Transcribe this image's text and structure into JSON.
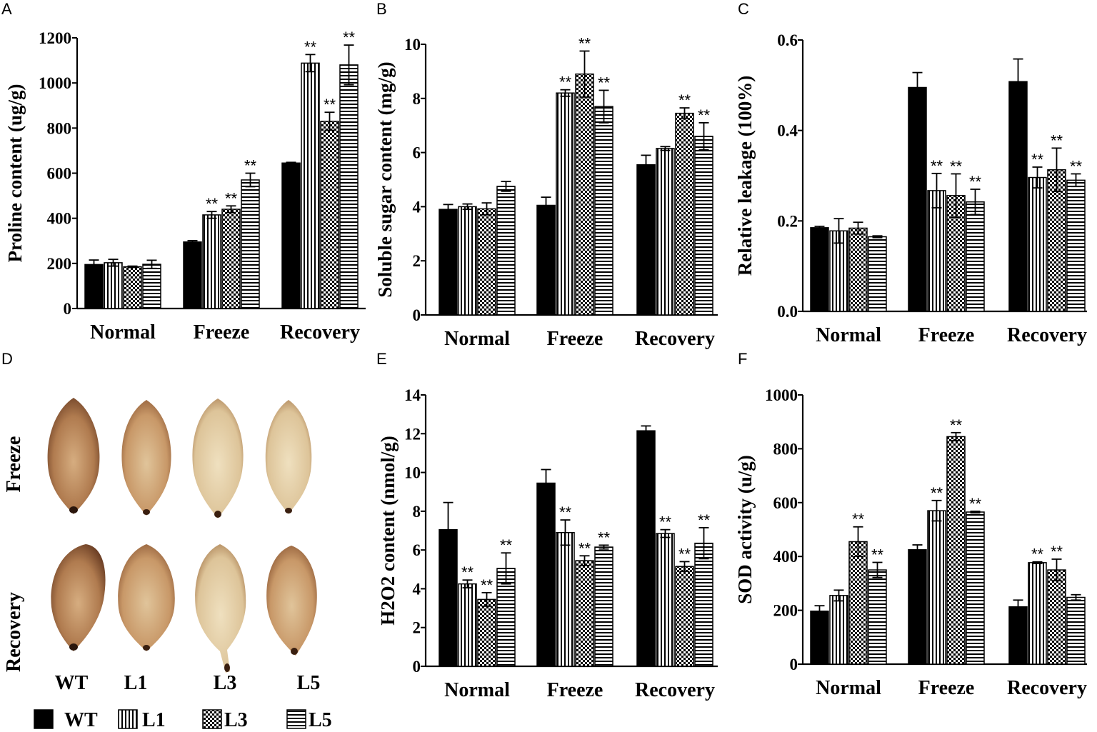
{
  "chart_data": [
    {
      "panel": "A",
      "type": "bar",
      "ylabel": "Proline content (ug/g)",
      "categories": [
        "Normal",
        "Freeze",
        "Recovery"
      ],
      "ylim": [
        0,
        1200
      ],
      "yticks": [
        "0",
        "200",
        "400",
        "600",
        "800",
        "1000",
        "1200"
      ],
      "ystep": 200,
      "series": [
        {
          "name": "WT",
          "values": [
            195,
            295,
            645
          ],
          "errors": [
            20,
            6,
            3
          ],
          "sig": [
            "",
            "",
            ""
          ]
        },
        {
          "name": "L1",
          "values": [
            203,
            415,
            1088
          ],
          "errors": [
            15,
            15,
            38
          ],
          "sig": [
            "",
            "**",
            "**"
          ]
        },
        {
          "name": "L3",
          "values": [
            185,
            440,
            830
          ],
          "errors": [
            3,
            15,
            40
          ],
          "sig": [
            "",
            "**",
            "**"
          ]
        },
        {
          "name": "L5",
          "values": [
            196,
            570,
            1080
          ],
          "errors": [
            18,
            30,
            88
          ],
          "sig": [
            "",
            "**",
            "**"
          ]
        }
      ]
    },
    {
      "panel": "B",
      "type": "bar",
      "ylabel": "Soluble sugar content (mg/g)",
      "categories": [
        "Normal",
        "Freeze",
        "Recovery"
      ],
      "ylim": [
        0,
        10
      ],
      "yticks": [
        "0",
        "2",
        "4",
        "6",
        "8",
        "10"
      ],
      "ystep": 2,
      "series": [
        {
          "name": "WT",
          "values": [
            3.9,
            4.05,
            5.55
          ],
          "errors": [
            0.18,
            0.3,
            0.35
          ],
          "sig": [
            "",
            "",
            ""
          ]
        },
        {
          "name": "L1",
          "values": [
            4.0,
            8.2,
            6.15
          ],
          "errors": [
            0.1,
            0.12,
            0.07
          ],
          "sig": [
            "",
            "**",
            ""
          ]
        },
        {
          "name": "L3",
          "values": [
            3.92,
            8.9,
            7.45
          ],
          "errors": [
            0.22,
            0.85,
            0.2
          ],
          "sig": [
            "",
            "**",
            "**"
          ]
        },
        {
          "name": "L5",
          "values": [
            4.75,
            7.7,
            6.6
          ],
          "errors": [
            0.18,
            0.6,
            0.5
          ],
          "sig": [
            "",
            "**",
            "**"
          ]
        }
      ]
    },
    {
      "panel": "C",
      "type": "bar",
      "ylabel": "Relative leakage (100%)",
      "categories": [
        "Normal",
        "Freeze",
        "Recovery"
      ],
      "ylim": [
        0,
        0.6
      ],
      "yticks": [
        "0.0",
        "0.2",
        "0.4",
        "0.6"
      ],
      "ystep": 0.2,
      "series": [
        {
          "name": "WT",
          "values": [
            0.185,
            0.495,
            0.508
          ],
          "errors": [
            0.003,
            0.033,
            0.05
          ],
          "sig": [
            "",
            "",
            ""
          ]
        },
        {
          "name": "L1",
          "values": [
            0.178,
            0.267,
            0.296
          ],
          "errors": [
            0.027,
            0.038,
            0.023
          ],
          "sig": [
            "",
            "**",
            "**"
          ]
        },
        {
          "name": "L3",
          "values": [
            0.184,
            0.256,
            0.313
          ],
          "errors": [
            0.013,
            0.048,
            0.048
          ],
          "sig": [
            "",
            "**",
            "**"
          ]
        },
        {
          "name": "L5",
          "values": [
            0.165,
            0.242,
            0.29
          ],
          "errors": [
            0.002,
            0.028,
            0.014
          ],
          "sig": [
            "",
            "**",
            "**"
          ]
        }
      ]
    },
    {
      "panel": "E",
      "type": "bar",
      "ylabel": "H2O2 content (nmol/g)",
      "categories": [
        "Normal",
        "Freeze",
        "Recovery"
      ],
      "ylim": [
        0,
        14
      ],
      "yticks": [
        "0",
        "2",
        "4",
        "6",
        "8",
        "10",
        "12",
        "14"
      ],
      "ystep": 2,
      "series": [
        {
          "name": "WT",
          "values": [
            7.05,
            9.45,
            12.15
          ],
          "errors": [
            1.4,
            0.7,
            0.25
          ],
          "sig": [
            "",
            "",
            ""
          ]
        },
        {
          "name": "L1",
          "values": [
            4.25,
            6.9,
            6.85
          ],
          "errors": [
            0.2,
            0.65,
            0.2
          ],
          "sig": [
            "**",
            "**",
            "**"
          ]
        },
        {
          "name": "L3",
          "values": [
            3.45,
            5.45,
            5.15
          ],
          "errors": [
            0.35,
            0.25,
            0.25
          ],
          "sig": [
            "**",
            "**",
            "**"
          ]
        },
        {
          "name": "L5",
          "values": [
            5.05,
            6.15,
            6.35
          ],
          "errors": [
            0.8,
            0.1,
            0.8
          ],
          "sig": [
            "**",
            "**",
            "**"
          ]
        }
      ]
    },
    {
      "panel": "F",
      "type": "bar",
      "ylabel": "SOD activity (u/g)",
      "categories": [
        "Normal",
        "Freeze",
        "Recovery"
      ],
      "ylim": [
        0,
        1000
      ],
      "yticks": [
        "0",
        "200",
        "400",
        "600",
        "800",
        "1000"
      ],
      "ystep": 200,
      "series": [
        {
          "name": "WT",
          "values": [
            197,
            425,
            213
          ],
          "errors": [
            20,
            18,
            25
          ],
          "sig": [
            "",
            "",
            ""
          ]
        },
        {
          "name": "L1",
          "values": [
            255,
            570,
            377
          ],
          "errors": [
            20,
            38,
            3
          ],
          "sig": [
            "",
            "**",
            "**"
          ]
        },
        {
          "name": "L3",
          "values": [
            455,
            845,
            350
          ],
          "errors": [
            55,
            15,
            40
          ],
          "sig": [
            "**",
            "**",
            "**"
          ]
        },
        {
          "name": "L5",
          "values": [
            350,
            565,
            248
          ],
          "errors": [
            28,
            3,
            10
          ],
          "sig": [
            "**",
            "**",
            ""
          ]
        }
      ]
    }
  ],
  "panel_labels": [
    "A",
    "B",
    "C",
    "D",
    "E",
    "F"
  ],
  "photo_panel": {
    "label": "D",
    "rows": [
      "Freeze",
      "Recovery"
    ],
    "columns": [
      "WT",
      "L1",
      "L3",
      "L5"
    ]
  },
  "legend": [
    "WT",
    "L1",
    "L3",
    "L5"
  ],
  "colors": {
    "wt_fill": "#000000",
    "stroke": "#000000",
    "leaf_base": "#c8996a",
    "leaf_pale": "#e3c89b"
  },
  "icons": {
    "WT": "solid-black",
    "L1": "vertical-stripes",
    "L3": "checker",
    "L5": "horizontal-stripes"
  }
}
